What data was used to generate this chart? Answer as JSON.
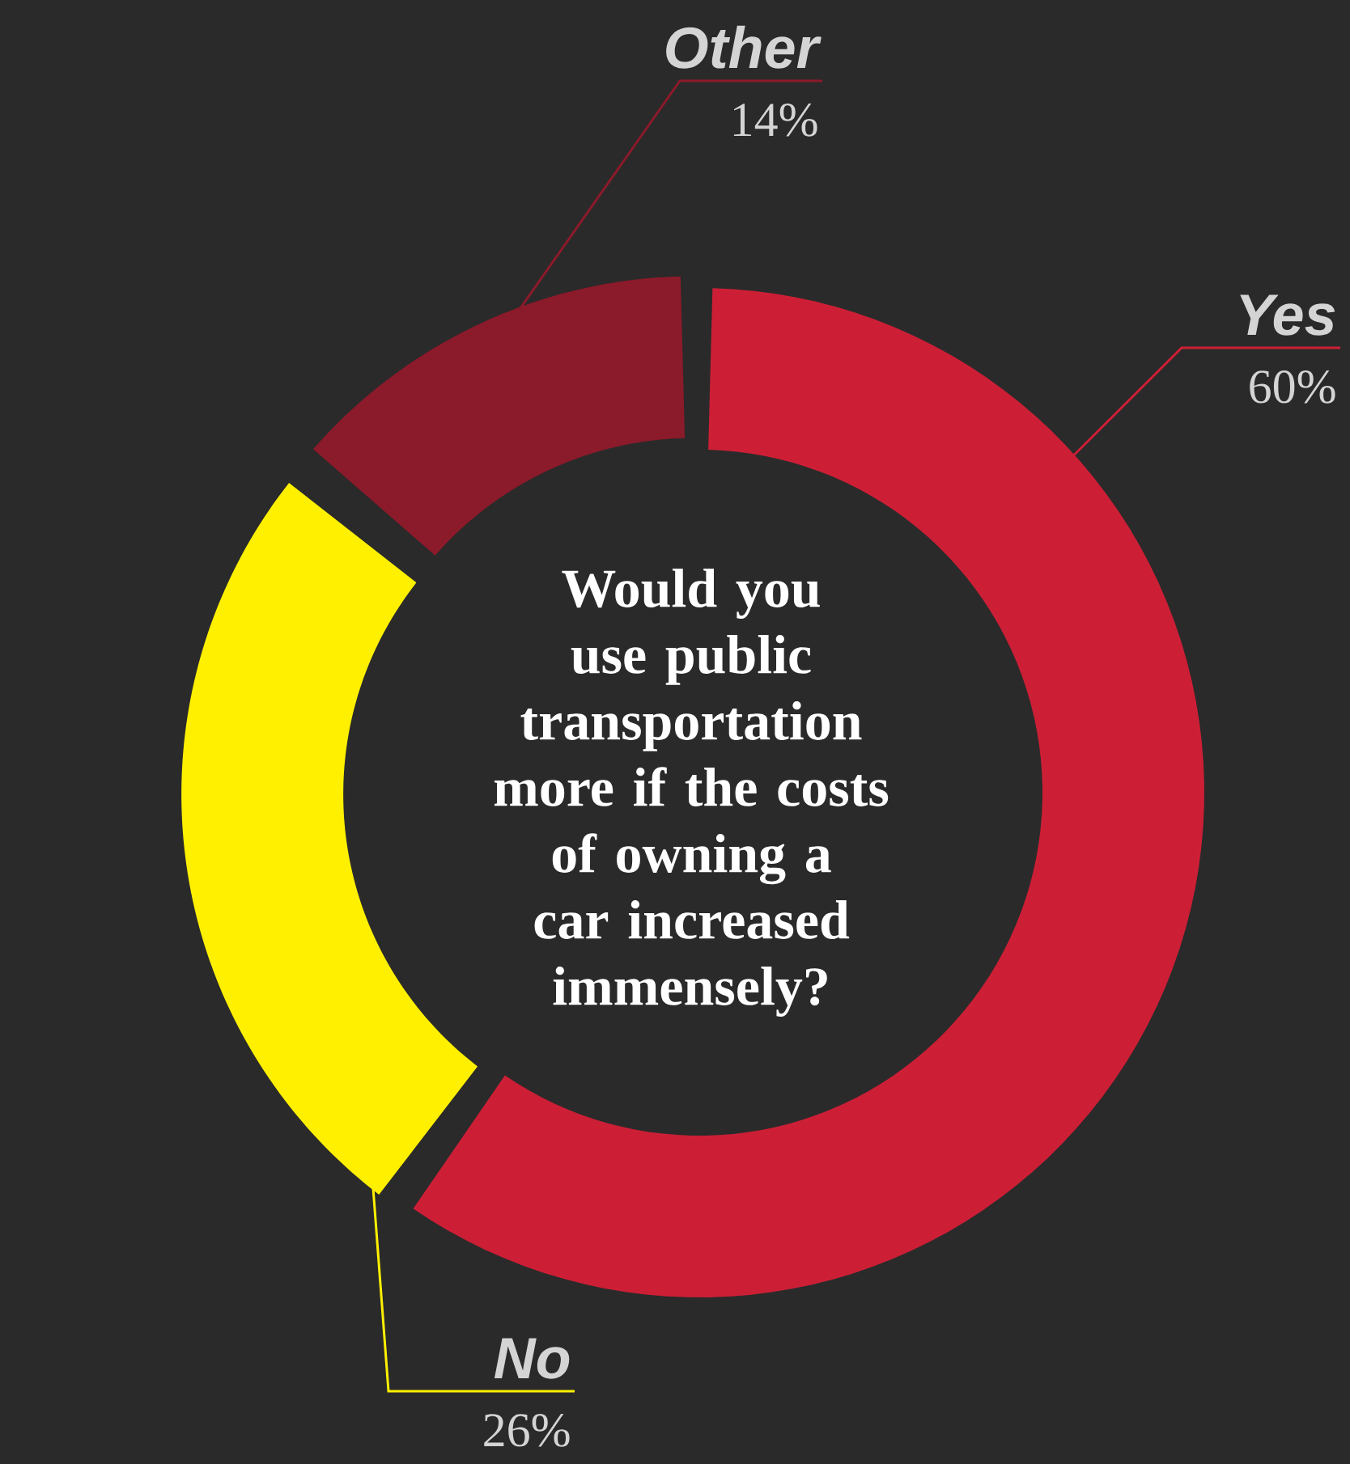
{
  "chart_data": {
    "type": "donut",
    "title": "Would you use public transportation more if the costs of owning a car increased immensely?",
    "categories": [
      "Yes",
      "No",
      "Other"
    ],
    "values": [
      60,
      26,
      14
    ],
    "value_labels": [
      "60%",
      "26%",
      "14%"
    ],
    "colors": [
      "#cc1f36",
      "#fff000",
      "#8b1a2a"
    ]
  }
}
